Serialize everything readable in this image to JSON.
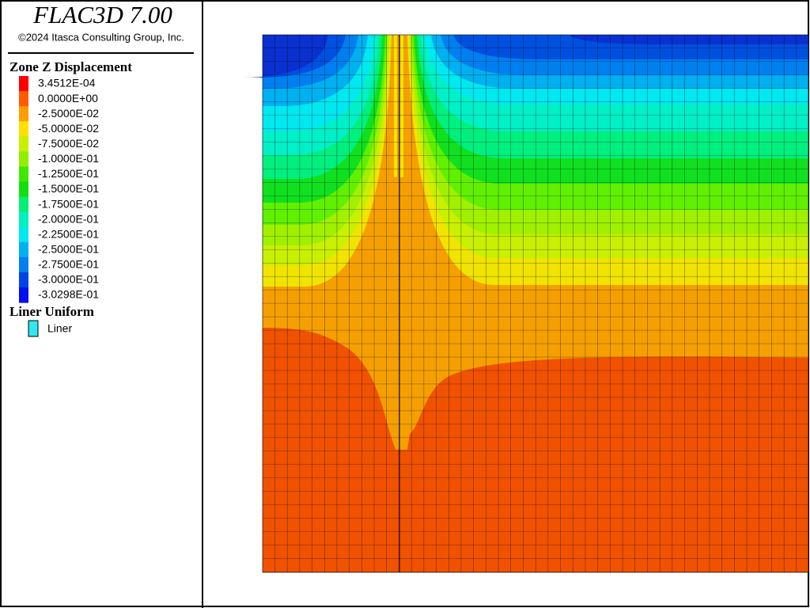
{
  "header": {
    "title": "FLAC3D 7.00",
    "copyright": "©2024 Itasca Consulting Group, Inc."
  },
  "legend": {
    "title": "Zone Z Displacement",
    "entries": [
      {
        "label": "3.4512E-04",
        "color": "#ff0000"
      },
      {
        "label": "0.0000E+00",
        "color": "#ff5a00"
      },
      {
        "label": "-2.5000E-02",
        "color": "#ff9c00"
      },
      {
        "label": "-5.0000E-02",
        "color": "#ffe000"
      },
      {
        "label": "-7.5000E-02",
        "color": "#c8f000"
      },
      {
        "label": "-1.0000E-01",
        "color": "#90f000"
      },
      {
        "label": "-1.2500E-01",
        "color": "#40e800"
      },
      {
        "label": "-1.5000E-01",
        "color": "#10e010"
      },
      {
        "label": "-1.7500E-01",
        "color": "#00f070"
      },
      {
        "label": "-2.0000E-01",
        "color": "#00f0c0"
      },
      {
        "label": "-2.2500E-01",
        "color": "#00e8f0"
      },
      {
        "label": "-2.5000E-01",
        "color": "#00b0f0"
      },
      {
        "label": "-2.7500E-01",
        "color": "#0080f0"
      },
      {
        "label": "-3.0000E-01",
        "color": "#0044e8"
      },
      {
        "label": "-3.0298E-01",
        "color": "#0010f0"
      }
    ]
  },
  "liner": {
    "title": "Liner Uniform",
    "entries": [
      {
        "label": "Liner",
        "color": "#30e8f0"
      }
    ]
  }
}
